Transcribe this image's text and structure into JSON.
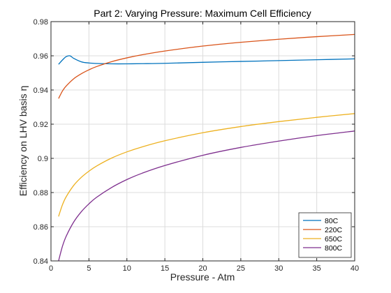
{
  "chart_data": {
    "type": "line",
    "title": "Part 2: Varying Pressure: Maximum Cell Efficiency",
    "xlabel": "Pressure - Atm",
    "ylabel": "Efficiency on LHV basis η",
    "xlim": [
      0,
      40
    ],
    "ylim": [
      0.84,
      0.98
    ],
    "xticks": [
      0,
      5,
      10,
      15,
      20,
      25,
      30,
      35,
      40
    ],
    "xtick_labels": [
      "0",
      "5",
      "10",
      "15",
      "20",
      "25",
      "30",
      "35",
      "40"
    ],
    "yticks": [
      0.84,
      0.86,
      0.88,
      0.9,
      0.92,
      0.94,
      0.96,
      0.98
    ],
    "ytick_labels": [
      "0.84",
      "0.86",
      "0.88",
      "0.9",
      "0.92",
      "0.94",
      "0.96",
      "0.98"
    ],
    "grid": true,
    "legend_position": "bottom-right",
    "series": [
      {
        "name": "80C",
        "color": "#0072BD",
        "x": [
          1,
          1.5,
          2,
          2.5,
          3,
          4,
          5,
          6,
          8,
          10,
          12,
          15,
          20,
          25,
          30,
          35,
          40
        ],
        "y": [
          0.955,
          0.9575,
          0.9595,
          0.96,
          0.9585,
          0.9565,
          0.9558,
          0.9555,
          0.9553,
          0.9553,
          0.9554,
          0.9556,
          0.9562,
          0.9567,
          0.9572,
          0.9577,
          0.9582
        ]
      },
      {
        "name": "220C",
        "color": "#D95319",
        "x": [
          1,
          1.5,
          2,
          3,
          4,
          5,
          6,
          8,
          10,
          12,
          15,
          20,
          25,
          30,
          35,
          40
        ],
        "y": [
          0.935,
          0.9393,
          0.9423,
          0.9466,
          0.9495,
          0.9518,
          0.9537,
          0.9566,
          0.9588,
          0.9606,
          0.9628,
          0.9657,
          0.9679,
          0.9697,
          0.9712,
          0.9725
        ]
      },
      {
        "name": "650C",
        "color": "#EDB120",
        "x": [
          1,
          1.5,
          2,
          3,
          4,
          5,
          6,
          8,
          10,
          12,
          15,
          20,
          25,
          30,
          35,
          40
        ],
        "y": [
          0.866,
          0.8727,
          0.8775,
          0.8842,
          0.8889,
          0.8925,
          0.8955,
          0.9002,
          0.9038,
          0.9067,
          0.9103,
          0.915,
          0.9186,
          0.9215,
          0.924,
          0.9262
        ]
      },
      {
        "name": "800C",
        "color": "#7E2F8E",
        "x": [
          1,
          1.5,
          2,
          3,
          4,
          5,
          6,
          8,
          10,
          12,
          15,
          20,
          25,
          30,
          35,
          40
        ],
        "y": [
          0.84,
          0.8484,
          0.8544,
          0.8628,
          0.8688,
          0.8734,
          0.8772,
          0.883,
          0.8876,
          0.8913,
          0.8958,
          0.9018,
          0.9064,
          0.9101,
          0.9133,
          0.916
        ]
      }
    ]
  }
}
